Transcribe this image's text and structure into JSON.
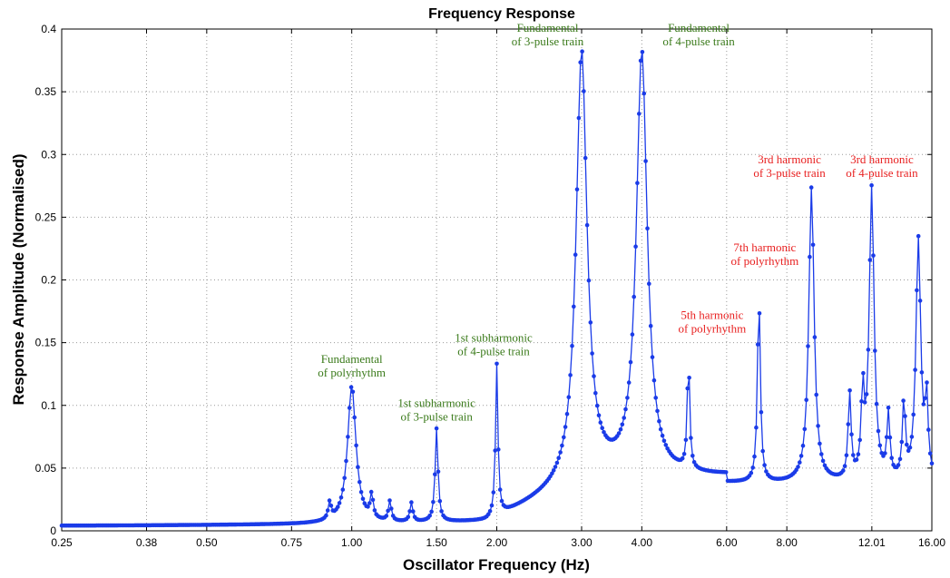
{
  "chart_data": {
    "type": "line",
    "title": "Frequency Response",
    "xlabel": "Oscillator Frequency (Hz)",
    "ylabel": "Response Amplitude (Normalised)",
    "x_scale": "log2",
    "xlim": [
      0.25,
      16.0
    ],
    "ylim": [
      0,
      0.4
    ],
    "x_ticks": [
      {
        "value": 0.25,
        "label": "0.25"
      },
      {
        "value": 0.375,
        "label": "0.38"
      },
      {
        "value": 0.5,
        "label": "0.50"
      },
      {
        "value": 0.75,
        "label": "0.75"
      },
      {
        "value": 1.0,
        "label": "1.00"
      },
      {
        "value": 1.5,
        "label": "1.50"
      },
      {
        "value": 2.0,
        "label": "2.00"
      },
      {
        "value": 3.0,
        "label": "3.00"
      },
      {
        "value": 4.0,
        "label": "4.00"
      },
      {
        "value": 6.0,
        "label": "6.00"
      },
      {
        "value": 8.0,
        "label": "8.00"
      },
      {
        "value": 12.01,
        "label": "12.01"
      },
      {
        "value": 16.0,
        "label": "16.00"
      }
    ],
    "y_ticks": [
      {
        "value": 0,
        "label": "0"
      },
      {
        "value": 0.05,
        "label": "0.05"
      },
      {
        "value": 0.1,
        "label": "0.1"
      },
      {
        "value": 0.15,
        "label": "0.15"
      },
      {
        "value": 0.2,
        "label": "0.2"
      },
      {
        "value": 0.25,
        "label": "0.25"
      },
      {
        "value": 0.3,
        "label": "0.3"
      },
      {
        "value": 0.35,
        "label": "0.35"
      },
      {
        "value": 0.4,
        "label": "0.4"
      }
    ],
    "grid": true,
    "series_color": "#1a3be8",
    "peaks": [
      {
        "x": 1.0,
        "y": 0.115,
        "w": 0.035
      },
      {
        "x": 1.5,
        "y": 0.08,
        "w": 0.012
      },
      {
        "x": 2.0,
        "y": 0.13,
        "w": 0.01
      },
      {
        "x": 3.0,
        "y": 0.38,
        "w": 0.045
      },
      {
        "x": 4.0,
        "y": 0.38,
        "w": 0.045
      },
      {
        "x": 5.0,
        "y": 0.132,
        "w": 0.01
      },
      {
        "x": 7.0,
        "y": 0.187,
        "w": 0.012
      },
      {
        "x": 9.0,
        "y": 0.272,
        "w": 0.022
      },
      {
        "x": 12.0,
        "y": 0.27,
        "w": 0.02
      },
      {
        "x": 15.0,
        "y": 0.23,
        "w": 0.02
      }
    ],
    "secondary_peaks": [
      {
        "x": 0.9,
        "y": 0.027
      },
      {
        "x": 1.1,
        "y": 0.038
      },
      {
        "x": 1.2,
        "y": 0.032
      },
      {
        "x": 1.33,
        "y": 0.03
      },
      {
        "x": 10.8,
        "y": 0.136
      },
      {
        "x": 11.5,
        "y": 0.13
      },
      {
        "x": 13.0,
        "y": 0.1
      },
      {
        "x": 14.0,
        "y": 0.12
      },
      {
        "x": 15.6,
        "y": 0.12
      }
    ],
    "annotations": [
      {
        "lines": [
          "Fundamental",
          "of polyrhythm"
        ],
        "x": 1.0,
        "y": 0.123,
        "color": "#3a7a1a"
      },
      {
        "lines": [
          "1st  subharmonic",
          "of 3-pulse train"
        ],
        "x": 1.5,
        "y": 0.088,
        "color": "#3a7a1a"
      },
      {
        "lines": [
          "1st  subharmonic",
          "of 4-pulse train"
        ],
        "x": 1.97,
        "y": 0.14,
        "color": "#3a7a1a"
      },
      {
        "lines": [
          "Fundamental",
          "of 3-pulse train"
        ],
        "x": 2.55,
        "y": 0.387,
        "color": "#3a7a1a"
      },
      {
        "lines": [
          "Fundamental",
          "of 4-pulse train"
        ],
        "x": 5.25,
        "y": 0.387,
        "color": "#3a7a1a"
      },
      {
        "lines": [
          "3rd harmonic",
          "of 3-pulse train"
        ],
        "x": 8.1,
        "y": 0.282,
        "color": "#e82020"
      },
      {
        "lines": [
          "3rd harmonic",
          "of 4-pulse train"
        ],
        "x": 12.6,
        "y": 0.282,
        "color": "#e82020"
      },
      {
        "lines": [
          "7th  harmonic",
          "of polyrhythm"
        ],
        "x": 7.2,
        "y": 0.212,
        "color": "#e82020"
      },
      {
        "lines": [
          "5th  harmonic",
          "of polyrhythm"
        ],
        "x": 5.6,
        "y": 0.158,
        "color": "#e82020"
      }
    ]
  }
}
